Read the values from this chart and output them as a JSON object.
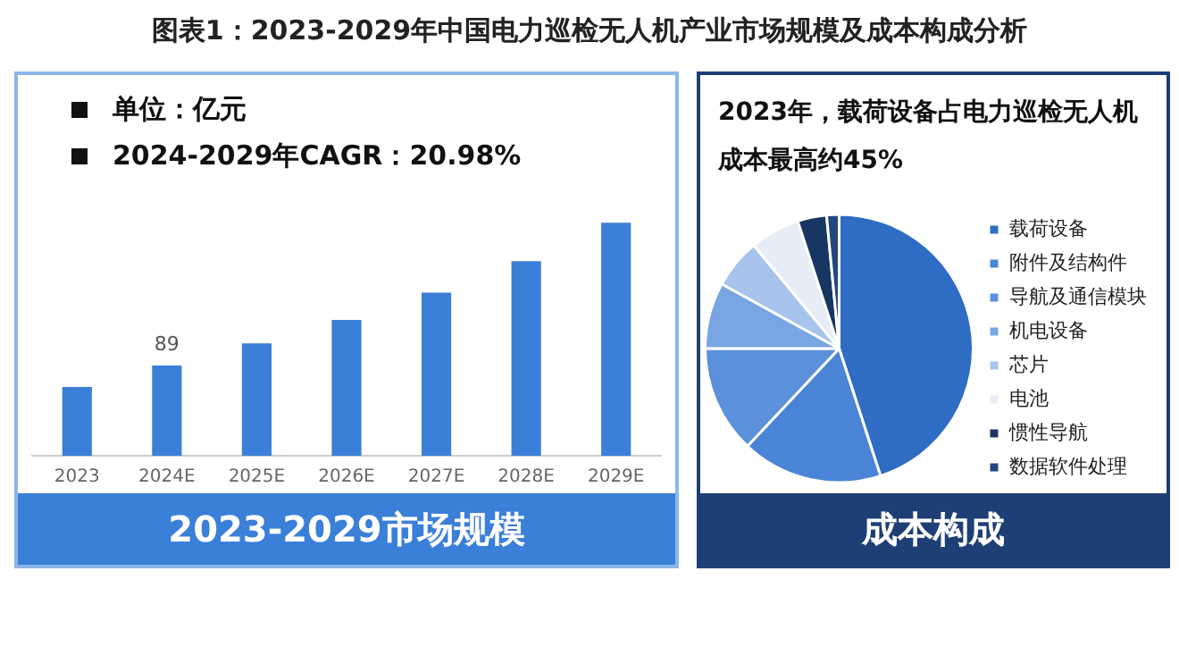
{
  "chart_data": [
    {
      "type": "bar",
      "title": "图表1：2023-2029年中国电力巡检无人机产业市场规模及成本构成分析",
      "subtitle": "2023-2029市场规模",
      "annotations": [
        "单位：亿元",
        "2024-2029年CAGR：20.98%"
      ],
      "categories": [
        "2023",
        "2024E",
        "2025E",
        "2026E",
        "2027E",
        "2028E",
        "2029E"
      ],
      "values": [
        68,
        89,
        111,
        134,
        161,
        192,
        230
      ],
      "value_labels": [
        null,
        "89",
        null,
        null,
        null,
        null,
        null
      ],
      "color": "#3a7fd8",
      "tick_labels": "x",
      "grid": false,
      "legend": false
    },
    {
      "type": "pie",
      "title": "2023年，载荷设备占电力巡检无人机成本最高约45%",
      "subtitle": "成本构成",
      "categories": [
        "载荷设备",
        "附件及结构件",
        "导航及通信模块",
        "机电设备",
        "芯片",
        "电池",
        "惯性导航",
        "数据软件处理"
      ],
      "values": [
        45,
        17,
        13,
        8,
        6,
        6,
        3.5,
        1.5
      ],
      "colors": [
        "#2f6cc4",
        "#4a84d6",
        "#5b90da",
        "#79a6e2",
        "#a6c4ec",
        "#e6edf7",
        "#173661",
        "#24467e"
      ],
      "legend": "right"
    }
  ]
}
